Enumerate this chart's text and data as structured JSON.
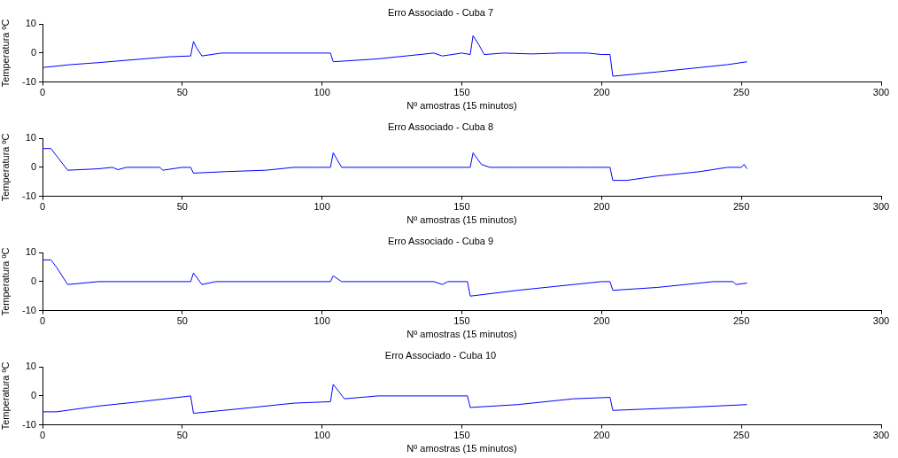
{
  "chart_data": [
    {
      "type": "line",
      "title": "Erro Associado - Cuba 7",
      "xlabel": "Nº amostras (15 minutos)",
      "ylabel": "Temperatura ºC",
      "color": "#0000ff",
      "marker": "none",
      "grid": false,
      "legend": false,
      "xlim": [
        0,
        300
      ],
      "xticks": [
        0,
        50,
        100,
        150,
        200,
        250,
        300
      ],
      "ylim": [
        -10,
        10
      ],
      "yticks": [
        -10,
        0,
        10
      ],
      "x": [
        0,
        10,
        20,
        30,
        45,
        53,
        54,
        55,
        57,
        64,
        103,
        104,
        120,
        140,
        143,
        150,
        153,
        154,
        156,
        158,
        165,
        175,
        185,
        195,
        200,
        203,
        204,
        220,
        235,
        245,
        252
      ],
      "values": [
        -5,
        -4,
        -3.3,
        -2.5,
        -1.3,
        -1,
        4,
        2,
        -1,
        0,
        0,
        -3,
        -2,
        0,
        -1,
        0,
        -0.5,
        6,
        3,
        -0.5,
        0,
        -0.3,
        0,
        0,
        -0.5,
        -0.5,
        -8,
        -6.5,
        -5,
        -4,
        -3
      ]
    },
    {
      "type": "line",
      "title": "Erro Associado - Cuba 8",
      "xlabel": "Nº amostras (15 minutos)",
      "ylabel": "Temperatura ºC",
      "color": "#0000ff",
      "marker": "none",
      "grid": false,
      "legend": false,
      "xlim": [
        0,
        300
      ],
      "xticks": [
        0,
        50,
        100,
        150,
        200,
        250,
        300
      ],
      "ylim": [
        -10,
        10
      ],
      "yticks": [
        -10,
        0,
        10
      ],
      "x": [
        0,
        3,
        5,
        9,
        20,
        25,
        27,
        30,
        42,
        43,
        50,
        53,
        54,
        65,
        80,
        90,
        97,
        103,
        104,
        107,
        153,
        154,
        157,
        160,
        170,
        190,
        195,
        203,
        204,
        209,
        220,
        235,
        245,
        250,
        251,
        252
      ],
      "values": [
        6.5,
        6.5,
        4,
        -1,
        -0.5,
        0,
        -0.8,
        0,
        0,
        -1,
        0,
        0,
        -2,
        -1.5,
        -1,
        0,
        0,
        0,
        5,
        0,
        0,
        5,
        1,
        0,
        0,
        0,
        0,
        0,
        -4.5,
        -4.5,
        -3,
        -1.5,
        0,
        0,
        1,
        -0.5
      ]
    },
    {
      "type": "line",
      "title": "Erro Associado - Cuba 9",
      "xlabel": "Nº amostras (15 minutos)",
      "ylabel": "Temperatura ºC",
      "color": "#0000ff",
      "marker": "none",
      "grid": false,
      "legend": false,
      "xlim": [
        0,
        300
      ],
      "xticks": [
        0,
        50,
        100,
        150,
        200,
        250,
        300
      ],
      "ylim": [
        -10,
        10
      ],
      "yticks": [
        -10,
        0,
        10
      ],
      "x": [
        0,
        3,
        5,
        9,
        20,
        30,
        53,
        54,
        57,
        62,
        103,
        104,
        107,
        140,
        143,
        145,
        152,
        153,
        170,
        190,
        200,
        203,
        204,
        220,
        240,
        247,
        248,
        252
      ],
      "values": [
        7.5,
        7.5,
        5,
        -1,
        0,
        0,
        0,
        3,
        -1,
        0,
        0,
        2,
        0,
        0,
        -1,
        0,
        0,
        -5,
        -3,
        -1,
        0,
        0,
        -3,
        -2,
        0,
        0,
        -1,
        -0.5
      ]
    },
    {
      "type": "line",
      "title": "Erro Associado - Cuba 10",
      "xlabel": "Nº amostras (15 minutos)",
      "ylabel": "Temperatura ºC",
      "color": "#0000ff",
      "marker": "none",
      "grid": false,
      "legend": false,
      "xlim": [
        0,
        300
      ],
      "xticks": [
        0,
        50,
        100,
        150,
        200,
        250,
        300
      ],
      "ylim": [
        -10,
        10
      ],
      "yticks": [
        -10,
        0,
        10
      ],
      "x": [
        0,
        5,
        20,
        35,
        53,
        54,
        70,
        90,
        103,
        104,
        106,
        108,
        120,
        152,
        153,
        170,
        190,
        203,
        204,
        230,
        252
      ],
      "values": [
        -5.5,
        -5.5,
        -3.5,
        -2,
        0,
        -6,
        -4.5,
        -2.5,
        -2,
        4,
        1.5,
        -1,
        0,
        0,
        -4,
        -3,
        -1,
        -0.5,
        -5,
        -4,
        -3
      ]
    }
  ]
}
